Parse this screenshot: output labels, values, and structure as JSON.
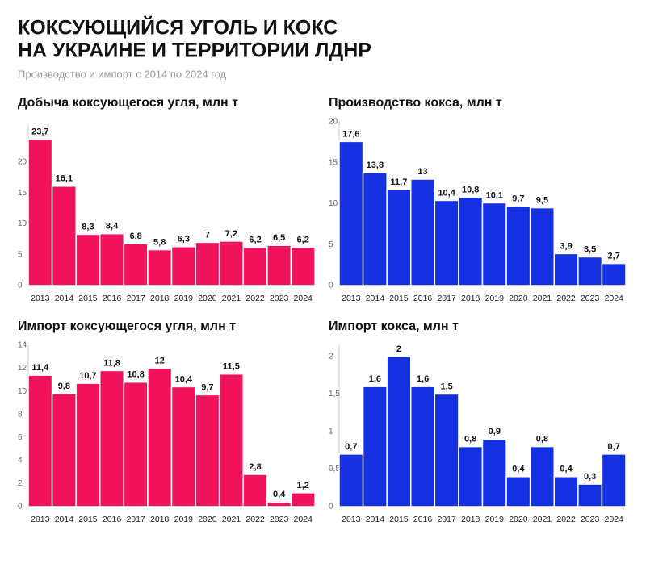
{
  "title_lines": [
    "КОКСУЮЩИЙСЯ УГОЛЬ И КОКС",
    "НА УКРАИНЕ И ТЕРРИТОРИИ ЛДНР"
  ],
  "subtitle": "Производство и импорт с 2014 по 2024 год",
  "chart_data": [
    {
      "type": "bar",
      "title": "Добыча коксующегося угля, млн т",
      "categories": [
        "2013",
        "2014",
        "2015",
        "2016",
        "2017",
        "2018",
        "2019",
        "2020",
        "2021",
        "2022",
        "2023",
        "2024"
      ],
      "values": [
        23.7,
        16.1,
        8.3,
        8.4,
        6.8,
        5.8,
        6.3,
        7,
        7.2,
        6.2,
        6.5,
        6.2
      ],
      "value_labels": [
        "23,7",
        "16,1",
        "8,3",
        "8,4",
        "6,8",
        "5,8",
        "6,3",
        "7",
        "7,2",
        "6,2",
        "6,5",
        "6,2"
      ],
      "color": "#f0125a",
      "ylim": [
        0,
        26
      ],
      "yticks": [
        0,
        5,
        10,
        15,
        20
      ],
      "grid": false
    },
    {
      "type": "bar",
      "title": "Производство кокса, млн т",
      "categories": [
        "2013",
        "2014",
        "2015",
        "2016",
        "2017",
        "2018",
        "2019",
        "2020",
        "2021",
        "2022",
        "2023",
        "2024"
      ],
      "values": [
        17.6,
        13.8,
        11.7,
        13,
        10.4,
        10.8,
        10.1,
        9.7,
        9.5,
        3.9,
        3.5,
        2.7
      ],
      "value_labels": [
        "17,6",
        "13,8",
        "11,7",
        "13",
        "10,4",
        "10,8",
        "10,1",
        "9,7",
        "9,5",
        "3,9",
        "3,5",
        "2,7"
      ],
      "color": "#1430e0",
      "ylim": [
        0,
        20
      ],
      "yticks": [
        0,
        5,
        10,
        15,
        20
      ],
      "grid": false
    },
    {
      "type": "bar",
      "title": "Импорт коксующегося угля, млн т",
      "categories": [
        "2013",
        "2014",
        "2015",
        "2016",
        "2017",
        "2018",
        "2019",
        "2020",
        "2021",
        "2022",
        "2023",
        "2024"
      ],
      "values": [
        11.4,
        9.8,
        10.7,
        11.8,
        10.8,
        12,
        10.4,
        9.7,
        11.5,
        2.8,
        0.4,
        1.2
      ],
      "value_labels": [
        "11,4",
        "9,8",
        "10,7",
        "11,8",
        "10,8",
        "12",
        "10,4",
        "9,7",
        "11,5",
        "2,8",
        "0,4",
        "1,2"
      ],
      "color": "#f0125a",
      "ylim": [
        0,
        14
      ],
      "yticks": [
        0,
        2,
        4,
        6,
        8,
        10,
        12,
        14
      ],
      "grid": false
    },
    {
      "type": "bar",
      "title": "Импорт кокса, млн т",
      "categories": [
        "2013",
        "2014",
        "2015",
        "2016",
        "2017",
        "2018",
        "2019",
        "2020",
        "2021",
        "2022",
        "2023",
        "2024"
      ],
      "values": [
        0.7,
        1.6,
        2,
        1.6,
        1.5,
        0.8,
        0.9,
        0.4,
        0.8,
        0.4,
        0.3,
        0.7
      ],
      "value_labels": [
        "0,7",
        "1,6",
        "2",
        "1,6",
        "1,5",
        "0,8",
        "0,9",
        "0,4",
        "0,8",
        "0,4",
        "0,3",
        "0,7"
      ],
      "color": "#1430e0",
      "ylim": [
        0,
        2.15
      ],
      "yticks": [
        0,
        {
          "value": 0.5,
          "label": "0,5"
        },
        1,
        {
          "value": 1.5,
          "label": "1,5"
        },
        2
      ],
      "grid": false
    }
  ]
}
